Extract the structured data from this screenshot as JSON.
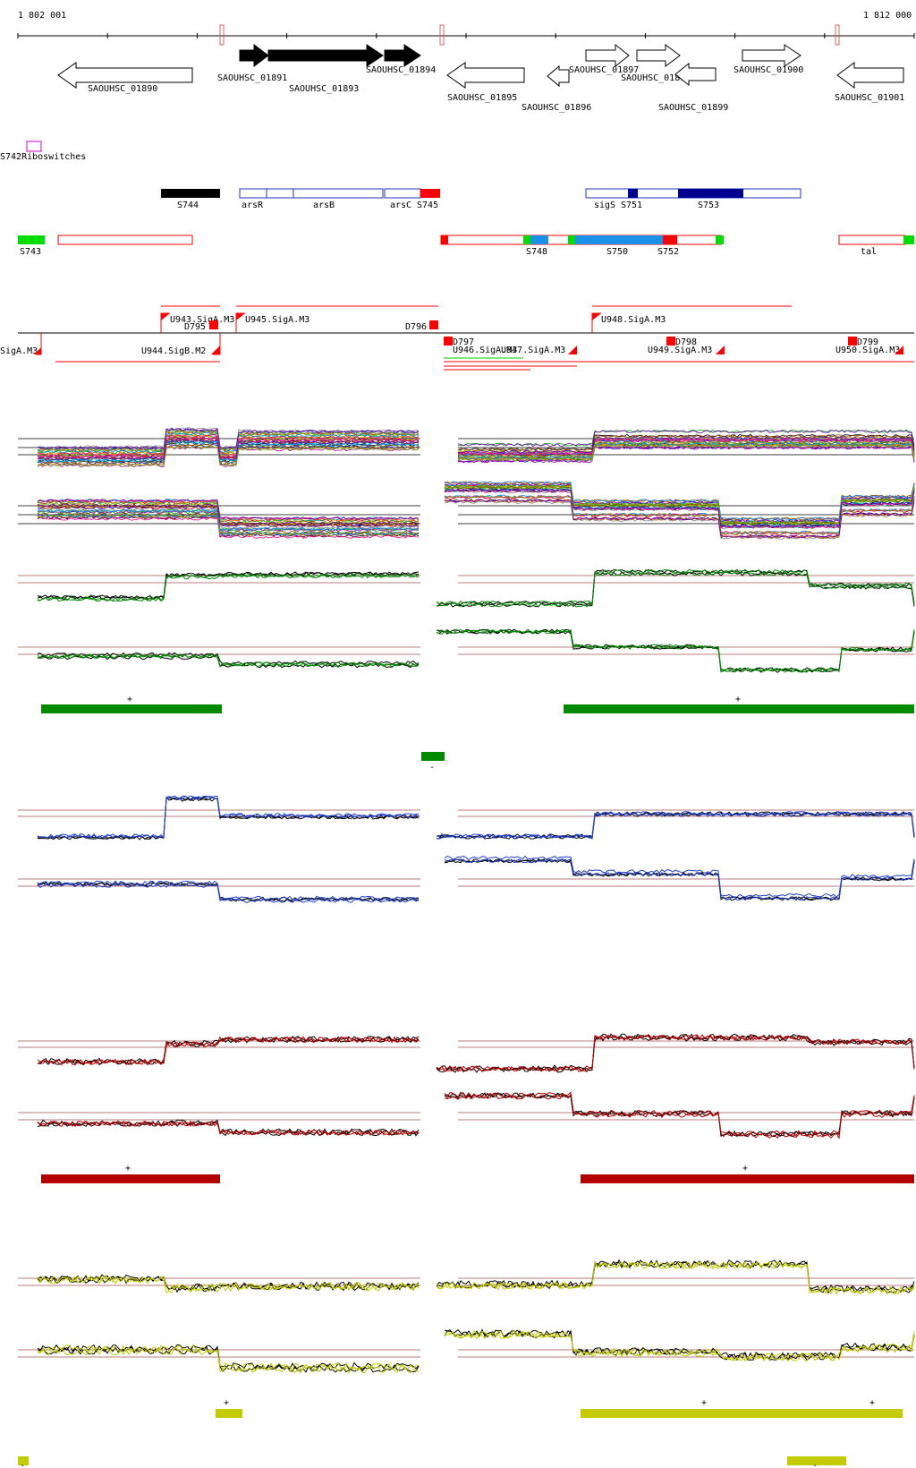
{
  "axis": {
    "left_label": "1 802 001",
    "right_label": "1 812 000",
    "start": 1802001,
    "end": 1812000
  },
  "genes": [
    {
      "label": "SAOUHSC_01890",
      "dir": "left",
      "filled": false
    },
    {
      "label": "SAOUHSC_01891",
      "dir": "right",
      "filled": true
    },
    {
      "label": "SAOUHSC_01893",
      "dir": "right",
      "filled": true
    },
    {
      "label": "SAOUHSC_01894",
      "dir": "right",
      "filled": true
    },
    {
      "label": "SAOUHSC_01895",
      "dir": "left",
      "filled": false
    },
    {
      "label": "SAOUHSC_01896",
      "dir": "left",
      "filled": false
    },
    {
      "label": "SAOUHSC_01897",
      "dir": "right",
      "filled": false
    },
    {
      "label": "SAOUHSC_01898",
      "dir": "right",
      "filled": false
    },
    {
      "label": "SAOUHSC_01899",
      "dir": "left",
      "filled": false
    },
    {
      "label": "SAOUHSC_01900",
      "dir": "right",
      "filled": false
    },
    {
      "label": "SAOUHSC_01901",
      "dir": "left",
      "filled": false
    }
  ],
  "misc_label": "S742Riboswitches",
  "features_top": [
    {
      "label": "S744"
    },
    {
      "label": "arsR"
    },
    {
      "label": "arsB"
    },
    {
      "label": "arsC"
    },
    {
      "label": "S745"
    },
    {
      "label": "sigS"
    },
    {
      "label": "S751"
    },
    {
      "label": "S753"
    }
  ],
  "features_bottom": [
    {
      "label": "S743"
    },
    {
      "label": "S748"
    },
    {
      "label": "S750"
    },
    {
      "label": "S752"
    },
    {
      "label": "tal"
    }
  ],
  "promoters": [
    {
      "label": "U943.SigA.M3"
    },
    {
      "label": "D795"
    },
    {
      "label": "U945.SigA.M3"
    },
    {
      "label": "D796"
    },
    {
      "label": "U948.SigA.M3"
    },
    {
      "label": "SigA.M3"
    },
    {
      "label": "U944.SigB.M2"
    },
    {
      "label": "D797"
    },
    {
      "label": "U946.SigA.M3"
    },
    {
      "label": "U947.SigA.M3"
    },
    {
      "label": "D798"
    },
    {
      "label": "U949.SigA.M3"
    },
    {
      "label": "D799"
    },
    {
      "label": "U950.SigA.M3"
    }
  ],
  "strand_plus": "+",
  "strand_minus": "-",
  "colors": {
    "green": "#008a00",
    "blue": "#1f3fd0",
    "red": "#b30000",
    "yellow": "#c4cc00",
    "feature_blue": "#1a90e8",
    "feature_navy": "#000090",
    "feature_green": "#00dd00",
    "feature_red": "#ff0000",
    "guide": "#a05050"
  }
}
